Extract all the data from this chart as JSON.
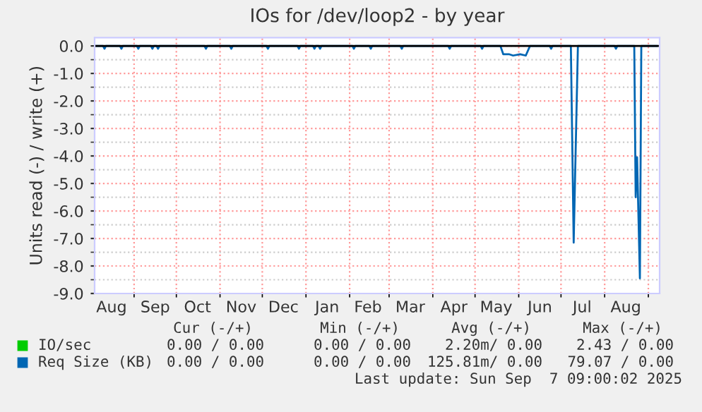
{
  "chart_data": {
    "type": "line",
    "title": "IOs for /dev/loop2 - by year",
    "ylabel": "Units read (-) / write (+)",
    "xlim": [
      "2024-08-04",
      "2025-09-09"
    ],
    "xticks": [
      {
        "value": "2024-08-16",
        "label": "Aug"
      },
      {
        "value": "2024-09-16",
        "label": "Sep"
      },
      {
        "value": "2024-10-16",
        "label": "Oct"
      },
      {
        "value": "2024-11-16",
        "label": "Nov"
      },
      {
        "value": "2024-12-16",
        "label": "Dec"
      },
      {
        "value": "2025-01-16",
        "label": "Jan"
      },
      {
        "value": "2025-02-14",
        "label": "Feb"
      },
      {
        "value": "2025-03-16",
        "label": "Mar"
      },
      {
        "value": "2025-04-16",
        "label": "Apr"
      },
      {
        "value": "2025-05-16",
        "label": "May"
      },
      {
        "value": "2025-06-16",
        "label": "Jun"
      },
      {
        "value": "2025-07-16",
        "label": "Jul"
      },
      {
        "value": "2025-08-16",
        "label": "Aug"
      },
      {
        "value": "2024-09-01",
        "label": null
      },
      {
        "value": "2024-10-01",
        "label": null
      },
      {
        "value": "2024-11-01",
        "label": null
      },
      {
        "value": "2024-12-01",
        "label": null
      },
      {
        "value": "2025-01-01",
        "label": null
      },
      {
        "value": "2025-02-01",
        "label": null
      },
      {
        "value": "2025-03-01",
        "label": null
      },
      {
        "value": "2025-04-01",
        "label": null
      },
      {
        "value": "2025-05-01",
        "label": null
      },
      {
        "value": "2025-06-01",
        "label": null
      },
      {
        "value": "2025-07-01",
        "label": null
      },
      {
        "value": "2025-08-01",
        "label": null
      },
      {
        "value": "2025-09-01",
        "label": null
      }
    ],
    "ylim": [
      -9,
      0.3
    ],
    "yticks": [
      {
        "value": 0,
        "label": "0.0"
      },
      {
        "value": -1,
        "label": "-1.0"
      },
      {
        "value": -2,
        "label": "-2.0"
      },
      {
        "value": -3,
        "label": "-3.0"
      },
      {
        "value": -4,
        "label": "-4.0"
      },
      {
        "value": -5,
        "label": "-5.0"
      },
      {
        "value": -6,
        "label": "-6.0"
      },
      {
        "value": -7,
        "label": "-7.0"
      },
      {
        "value": -8,
        "label": "-8.0"
      },
      {
        "value": -9,
        "label": "-9.0"
      },
      {
        "value": -0.5,
        "label": null
      },
      {
        "value": -1.5,
        "label": null
      },
      {
        "value": -2.5,
        "label": null
      },
      {
        "value": -3.5,
        "label": null
      },
      {
        "value": -4.5,
        "label": null
      },
      {
        "value": -5.5,
        "label": null
      },
      {
        "value": -6.5,
        "label": null
      },
      {
        "value": -7.5,
        "label": null
      },
      {
        "value": -8.5,
        "label": null
      }
    ],
    "grid": true,
    "legend": "bottom",
    "ref_lines": [
      {
        "axis": "y",
        "value": 0,
        "color": "#000000"
      }
    ],
    "series": [
      {
        "name": "IO/sec",
        "color": "#00cc00"
      },
      {
        "name": "Req Size (KB)",
        "color": "#0066b3",
        "x": [
          "2024-08-04",
          "2024-08-10",
          "2024-08-11",
          "2024-08-12",
          "2024-08-22",
          "2024-08-23",
          "2024-08-24",
          "2024-09-03",
          "2024-09-04",
          "2024-09-05",
          "2024-09-13",
          "2024-09-14",
          "2024-09-15",
          "2024-09-17",
          "2024-09-18",
          "2024-09-19",
          "2024-10-21",
          "2024-10-22",
          "2024-10-23",
          "2024-11-08",
          "2024-11-09",
          "2024-11-10",
          "2024-12-04",
          "2024-12-05",
          "2024-12-06",
          "2024-12-26",
          "2024-12-27",
          "2024-12-28",
          "2025-01-06",
          "2025-01-07",
          "2025-01-08",
          "2025-01-10",
          "2025-01-11",
          "2025-01-12",
          "2025-02-03",
          "2025-02-04",
          "2025-02-05",
          "2025-02-15",
          "2025-02-16",
          "2025-02-17",
          "2025-03-09",
          "2025-03-10",
          "2025-03-11",
          "2025-04-12",
          "2025-04-13",
          "2025-04-14",
          "2025-05-05",
          "2025-05-06",
          "2025-05-07",
          "2025-05-19",
          "2025-05-21",
          "2025-05-25",
          "2025-05-28",
          "2025-06-02",
          "2025-06-06",
          "2025-06-09",
          "2025-06-23",
          "2025-06-24",
          "2025-06-25",
          "2025-07-08",
          "2025-07-10",
          "2025-07-13",
          "2025-08-08",
          "2025-08-09",
          "2025-08-10",
          "2025-08-22",
          "2025-08-23",
          "2025-08-24",
          "2025-08-26",
          "2025-08-27",
          "2025-09-07"
        ],
        "values": [
          0,
          0,
          -0.1,
          0,
          0,
          -0.1,
          0,
          0,
          -0.1,
          0,
          0,
          -0.1,
          0,
          0,
          -0.1,
          0,
          0,
          -0.1,
          0,
          0,
          -0.1,
          0,
          0,
          -0.1,
          0,
          0,
          -0.1,
          0,
          0,
          -0.1,
          0,
          0,
          -0.1,
          0,
          0,
          -0.1,
          0,
          0,
          -0.1,
          0,
          0,
          -0.1,
          0,
          0,
          -0.1,
          0,
          0,
          -0.1,
          0,
          0,
          -0.3,
          -0.3,
          -0.35,
          -0.3,
          -0.35,
          0,
          0,
          -0.1,
          0,
          0,
          -7.15,
          0,
          0,
          -0.1,
          0,
          0,
          -5.5,
          -4.05,
          -8.45,
          0,
          0
        ]
      }
    ],
    "annotations": [
      "Cur (-/+)",
      "Min (-/+)",
      "Avg (-/+)",
      "Max (-/+)",
      "0.00 / 0.00",
      "0.00 / 0.00",
      "2.20m/ 0.00",
      "2.43 / 0.00",
      "0.00 / 0.00",
      "0.00 / 0.00",
      "125.81m/ 0.00",
      "79.07 / 0.00",
      "Last update: Sun Sep  7 09:00:02 2025"
    ]
  }
}
